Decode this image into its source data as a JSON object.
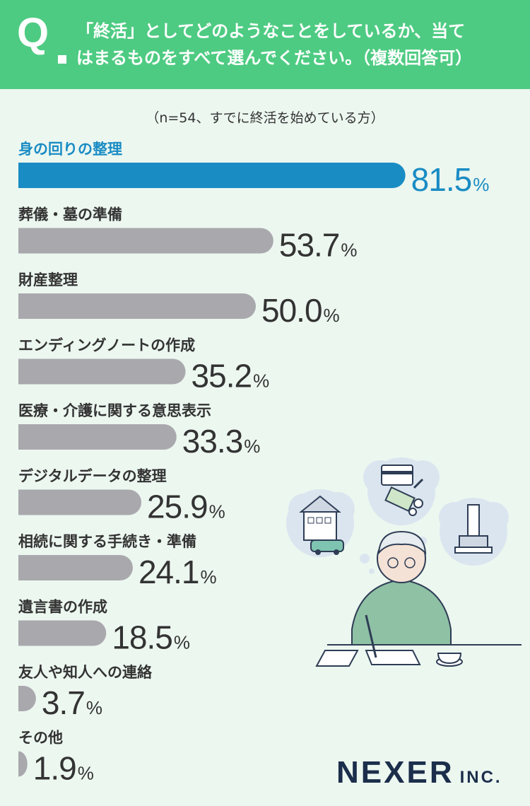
{
  "header": {
    "q_mark": "Q",
    "question_line1": "「終活」としてどのようなことをしているか、当て",
    "question_line2": "はまるものをすべて選んでください。（複数回答可）"
  },
  "subtitle": "（n=54、すでに終活を始めている方）",
  "colors": {
    "header": "#4ecb82",
    "background": "#ecf7f0",
    "highlight": "#1a8cc4",
    "bar": "#a9a9ad",
    "text": "#333333",
    "logo": "#1b2e4b"
  },
  "chart_data": {
    "type": "bar",
    "orientation": "horizontal",
    "categories": [
      "身の回りの整理",
      "葬儀・墓の準備",
      "財産整理",
      "エンディングノートの作成",
      "医療・介護に関する意思表示",
      "デジタルデータの整理",
      "相続に関する手続き・準備",
      "遺言書の作成",
      "友人や知人への連絡",
      "その他"
    ],
    "values": [
      81.5,
      53.7,
      50.0,
      35.2,
      33.3,
      25.9,
      24.1,
      18.5,
      3.7,
      1.9
    ],
    "value_labels": [
      "81.5",
      "53.7",
      "50.0",
      "35.2",
      "33.3",
      "25.9",
      "24.1",
      "18.5",
      "3.7",
      "1.9"
    ],
    "unit": "%",
    "highlight_index": 0
  },
  "illustration": {
    "icons": [
      "house-car-icon",
      "money-card-icon",
      "grave-icon",
      "elderly-man-writing-icon"
    ]
  },
  "logo": {
    "main": "NEXER",
    "sub": "INC."
  }
}
